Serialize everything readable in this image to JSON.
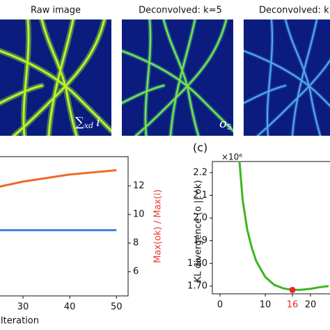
{
  "image_panels": [
    {
      "title": "Raw image",
      "label": [
        "∑",
        "xd",
        "i"
      ]
    },
    {
      "title": "Deconvolved: k=5",
      "label": [
        "o",
        "5"
      ]
    },
    {
      "title": "Deconvolved: k="
    }
  ],
  "chart_data": [
    {
      "type": "line",
      "x_label": "Iteration",
      "y2_label": "Max(ok) / Max(i)",
      "y2_label_color": "#e8392b",
      "x": [
        25,
        30,
        35,
        40,
        45,
        50
      ],
      "series": [
        {
          "color": "#f0682a",
          "axis": "y2",
          "values": [
            11.95,
            12.3,
            12.55,
            12.8,
            12.95,
            13.1
          ]
        },
        {
          "color": "#3a86d8",
          "axis": "y2",
          "values": [
            8.9,
            8.9,
            8.9,
            8.9,
            8.9,
            8.9
          ]
        }
      ],
      "xlim": [
        -2.5,
        52.5
      ],
      "xticks": [
        30,
        40,
        50
      ],
      "y2lim": [
        4.3,
        14.05
      ],
      "y2ticks": [
        6,
        8,
        10,
        12
      ]
    },
    {
      "type": "line",
      "panel_label": "(c)",
      "y_offset": "×10⁶",
      "y_label": "KL divergence (o || ok)",
      "x": [
        4.3,
        5,
        6,
        7,
        8,
        10,
        12,
        14,
        16,
        18,
        20,
        22,
        24
      ],
      "series": [
        {
          "color": "#3cb521",
          "values": [
            2.25,
            2.08,
            1.95,
            1.87,
            1.81,
            1.74,
            1.705,
            1.69,
            1.683,
            1.684,
            1.688,
            1.695,
            1.7
          ]
        }
      ],
      "highlight": {
        "x": 16,
        "y": 1.683,
        "color": "#e8292b"
      },
      "xlim": [
        -1.7,
        25
      ],
      "xticks": [
        0,
        10,
        16,
        20
      ],
      "ylim": [
        1.666,
        2.249
      ],
      "yticks": [
        {
          "value": 1.7,
          "label": "1.70"
        },
        {
          "value": 1.8,
          "label": "1.80"
        },
        1.9,
        {
          "value": 2,
          "label": "2.0"
        },
        2.1,
        2.2
      ]
    }
  ]
}
